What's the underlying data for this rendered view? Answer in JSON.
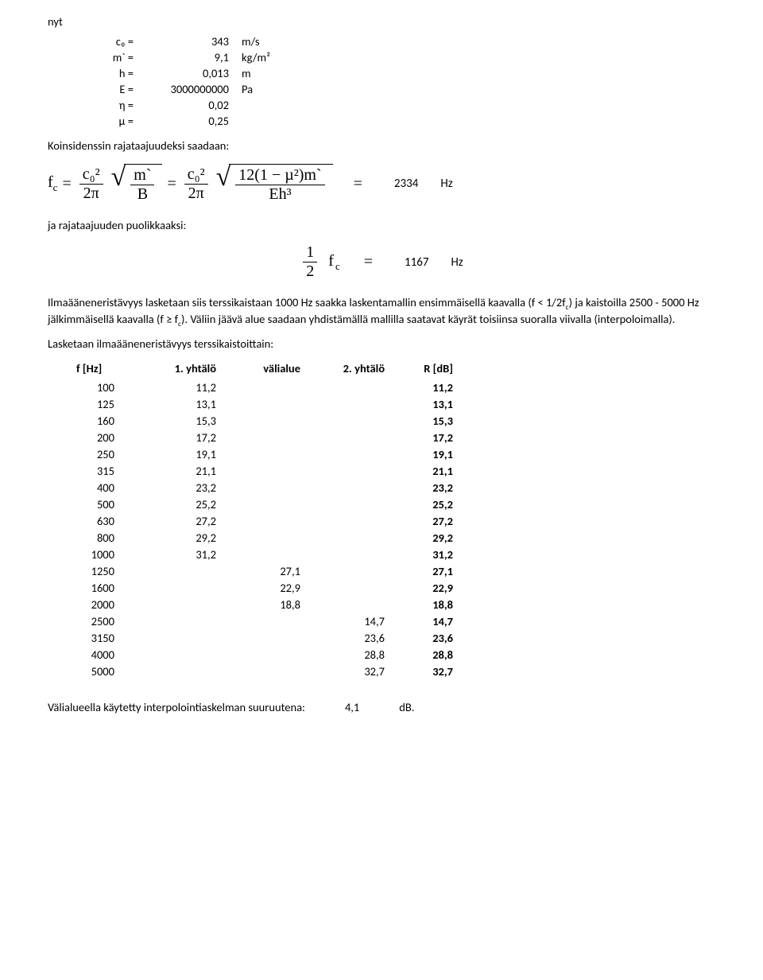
{
  "labels": {
    "nyt": "nyt",
    "koinsidenssi": "Koinsidenssin rajataajuudeksi saadaan:",
    "ja_rajataajuuden": "ja rajataajuuden puolikkaaksi:",
    "ilma_para": "Ilmaääneneristävyys lasketaan siis terssikaistaan 1000 Hz saakka laskentamallin ensimmäisellä kaavalla    (f < 1/2f",
    "ilma_para_sub": "c",
    "ilma_para2": ") ja kaistoilla 2500 - 5000 Hz jälkimmäisellä kaavalla (f ≥ f",
    "ilma_para2_sub": "c",
    "ilma_para3": "). Väliin jäävä alue saadaan yhdistämällä mallilla saatavat käyrät toisiinsa suoralla viivalla (interpoloimalla).",
    "lasketaan": "Lasketaan ilmaääneneristävyys terssikaistoittain:",
    "footer_text": "Välialueella käytetty interpolointiaskelman suuruutena:",
    "footer_val": "4,1",
    "footer_unit": "dB."
  },
  "params": [
    {
      "sym": "c₀ =",
      "val": "343",
      "unit": "m/s"
    },
    {
      "sym": "m` =",
      "val": "9,1",
      "unit": "kg/m²"
    },
    {
      "sym": "h =",
      "val": "0,013",
      "unit": "m"
    },
    {
      "sym": "E =",
      "val": "3000000000",
      "unit": "Pa"
    },
    {
      "sym": "η =",
      "val": "0,02",
      "unit": ""
    },
    {
      "sym": "μ =",
      "val": "0,25",
      "unit": ""
    }
  ],
  "eq1": {
    "lhs": "f",
    "lhs_sub": "c",
    "frac1_num": "c₀²",
    "frac1_den": "2π",
    "sqrt1_num": "m`",
    "sqrt1_den": "B",
    "frac2_num": "c₀²",
    "frac2_den": "2π",
    "sqrt2_num": "12(1 − µ²)m`",
    "sqrt2_den": "Eh³",
    "eqsym": "=",
    "result_val": "2334",
    "result_unit": "Hz"
  },
  "eq2": {
    "frac_num": "1",
    "frac_den": "2",
    "f": "f",
    "f_sub": "c",
    "eqsym": "=",
    "result_val": "1167",
    "result_unit": "Hz"
  },
  "table": {
    "headers": [
      "f [Hz]",
      "1. yhtälö",
      "välialue",
      "2. yhtälö",
      "R [dB]"
    ],
    "rows": [
      [
        "100",
        "11,2",
        "",
        "",
        "11,2"
      ],
      [
        "125",
        "13,1",
        "",
        "",
        "13,1"
      ],
      [
        "160",
        "15,3",
        "",
        "",
        "15,3"
      ],
      [
        "200",
        "17,2",
        "",
        "",
        "17,2"
      ],
      [
        "250",
        "19,1",
        "",
        "",
        "19,1"
      ],
      [
        "315",
        "21,1",
        "",
        "",
        "21,1"
      ],
      [
        "400",
        "23,2",
        "",
        "",
        "23,2"
      ],
      [
        "500",
        "25,2",
        "",
        "",
        "25,2"
      ],
      [
        "630",
        "27,2",
        "",
        "",
        "27,2"
      ],
      [
        "800",
        "29,2",
        "",
        "",
        "29,2"
      ],
      [
        "1000",
        "31,2",
        "",
        "",
        "31,2"
      ],
      [
        "1250",
        "",
        "27,1",
        "",
        "27,1"
      ],
      [
        "1600",
        "",
        "22,9",
        "",
        "22,9"
      ],
      [
        "2000",
        "",
        "18,8",
        "",
        "18,8"
      ],
      [
        "2500",
        "",
        "",
        "14,7",
        "14,7"
      ],
      [
        "3150",
        "",
        "",
        "23,6",
        "23,6"
      ],
      [
        "4000",
        "",
        "",
        "28,8",
        "28,8"
      ],
      [
        "5000",
        "",
        "",
        "32,7",
        "32,7"
      ]
    ]
  }
}
